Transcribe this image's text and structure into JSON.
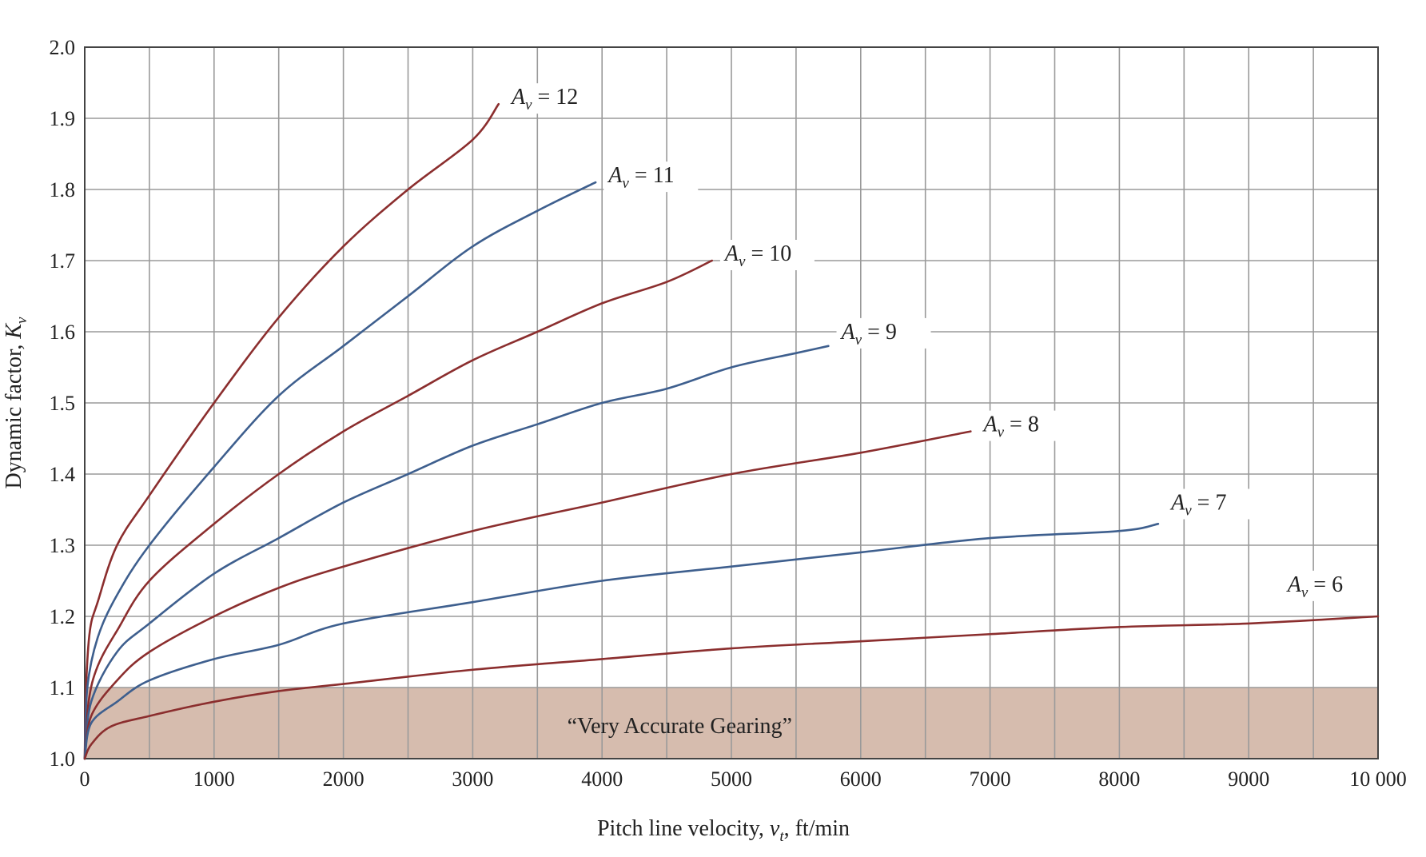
{
  "chart_data": {
    "type": "line",
    "xlabel": "Pitch line velocity, ",
    "xlabel_var": "v",
    "xlabel_sub": "t",
    "xlabel_unit": ", ft/min",
    "ylabel": "Dynamic factor, ",
    "ylabel_var": "K",
    "ylabel_sub": "v",
    "xlim": [
      0,
      10000
    ],
    "ylim": [
      1.0,
      2.0
    ],
    "x_ticks": [
      0,
      1000,
      2000,
      3000,
      4000,
      5000,
      6000,
      7000,
      8000,
      9000,
      10000
    ],
    "x_tick_labels": [
      "0",
      "1000",
      "2000",
      "3000",
      "4000",
      "5000",
      "6000",
      "7000",
      "8000",
      "9000",
      "10 000"
    ],
    "y_ticks": [
      1.0,
      1.1,
      1.2,
      1.3,
      1.4,
      1.5,
      1.6,
      1.7,
      1.8,
      1.9,
      2.0
    ],
    "y_tick_labels": [
      "1.0",
      "1.1",
      "1.2",
      "1.3",
      "1.4",
      "1.5",
      "1.6",
      "1.7",
      "1.8",
      "1.9",
      "2.0"
    ],
    "grid": true,
    "grid_step_x": 500,
    "grid_step_y": 0.1,
    "region": {
      "label": "“Very Accurate Gearing”",
      "y_range": [
        1.0,
        1.1
      ],
      "x_range": [
        0,
        10000
      ],
      "color": "#d6bcae"
    },
    "series": [
      {
        "name_var": "A",
        "name_sub": "v",
        "name_value": " = 12",
        "color": "#8b2e2e",
        "points": [
          [
            0,
            1.0
          ],
          [
            10,
            1.1
          ],
          [
            40,
            1.18
          ],
          [
            100,
            1.22
          ],
          [
            250,
            1.3
          ],
          [
            500,
            1.37
          ],
          [
            1000,
            1.5
          ],
          [
            1500,
            1.62
          ],
          [
            2000,
            1.72
          ],
          [
            2500,
            1.8
          ],
          [
            3000,
            1.87
          ],
          [
            3200,
            1.92
          ]
        ]
      },
      {
        "name_var": "A",
        "name_sub": "v",
        "name_value": " = 11",
        "color": "#3e5f8e",
        "points": [
          [
            0,
            1.0
          ],
          [
            20,
            1.1
          ],
          [
            100,
            1.17
          ],
          [
            250,
            1.23
          ],
          [
            500,
            1.3
          ],
          [
            1000,
            1.41
          ],
          [
            1500,
            1.51
          ],
          [
            2000,
            1.58
          ],
          [
            2500,
            1.65
          ],
          [
            3000,
            1.72
          ],
          [
            3500,
            1.77
          ],
          [
            3950,
            1.81
          ]
        ]
      },
      {
        "name_var": "A",
        "name_sub": "v",
        "name_value": " = 10",
        "color": "#8b2e2e",
        "points": [
          [
            0,
            1.0
          ],
          [
            30,
            1.08
          ],
          [
            100,
            1.13
          ],
          [
            250,
            1.18
          ],
          [
            500,
            1.25
          ],
          [
            1000,
            1.33
          ],
          [
            1500,
            1.4
          ],
          [
            2000,
            1.46
          ],
          [
            2500,
            1.51
          ],
          [
            3000,
            1.56
          ],
          [
            3500,
            1.6
          ],
          [
            4000,
            1.64
          ],
          [
            4500,
            1.67
          ],
          [
            4850,
            1.7
          ]
        ]
      },
      {
        "name_var": "A",
        "name_sub": "v",
        "name_value": " = 9",
        "color": "#3e5f8e",
        "points": [
          [
            0,
            1.0
          ],
          [
            50,
            1.08
          ],
          [
            250,
            1.15
          ],
          [
            500,
            1.19
          ],
          [
            1000,
            1.26
          ],
          [
            1500,
            1.31
          ],
          [
            2000,
            1.36
          ],
          [
            2500,
            1.4
          ],
          [
            3000,
            1.44
          ],
          [
            3500,
            1.47
          ],
          [
            4000,
            1.5
          ],
          [
            4500,
            1.52
          ],
          [
            5000,
            1.55
          ],
          [
            5500,
            1.57
          ],
          [
            5750,
            1.58
          ]
        ]
      },
      {
        "name_var": "A",
        "name_sub": "v",
        "name_value": " = 8",
        "color": "#8b2e2e",
        "points": [
          [
            0,
            1.0
          ],
          [
            50,
            1.06
          ],
          [
            250,
            1.11
          ],
          [
            500,
            1.15
          ],
          [
            1000,
            1.2
          ],
          [
            1500,
            1.24
          ],
          [
            2000,
            1.27
          ],
          [
            3000,
            1.32
          ],
          [
            4000,
            1.36
          ],
          [
            5000,
            1.4
          ],
          [
            6000,
            1.43
          ],
          [
            6850,
            1.46
          ]
        ]
      },
      {
        "name_var": "A",
        "name_sub": "v",
        "name_value": " = 7",
        "color": "#3e5f8e",
        "points": [
          [
            0,
            1.0
          ],
          [
            50,
            1.05
          ],
          [
            250,
            1.08
          ],
          [
            500,
            1.11
          ],
          [
            1000,
            1.14
          ],
          [
            1500,
            1.16
          ],
          [
            2000,
            1.19
          ],
          [
            3000,
            1.22
          ],
          [
            4000,
            1.25
          ],
          [
            5000,
            1.27
          ],
          [
            6000,
            1.29
          ],
          [
            7000,
            1.31
          ],
          [
            8000,
            1.32
          ],
          [
            8300,
            1.33
          ]
        ]
      },
      {
        "name_var": "A",
        "name_sub": "v",
        "name_value": " = 6",
        "color": "#8b2e2e",
        "points": [
          [
            0,
            1.0
          ],
          [
            50,
            1.02
          ],
          [
            200,
            1.045
          ],
          [
            500,
            1.06
          ],
          [
            1000,
            1.08
          ],
          [
            1500,
            1.095
          ],
          [
            2000,
            1.105
          ],
          [
            3000,
            1.125
          ],
          [
            4000,
            1.14
          ],
          [
            5000,
            1.155
          ],
          [
            6000,
            1.165
          ],
          [
            7000,
            1.175
          ],
          [
            8000,
            1.185
          ],
          [
            9000,
            1.19
          ],
          [
            10000,
            1.2
          ]
        ]
      }
    ],
    "series_labels_anchor": [
      {
        "x": 3300,
        "y": 1.92
      },
      {
        "x": 4050,
        "y": 1.81
      },
      {
        "x": 4950,
        "y": 1.7
      },
      {
        "x": 5850,
        "y": 1.59
      },
      {
        "x": 6950,
        "y": 1.46
      },
      {
        "x": 8400,
        "y": 1.35
      },
      {
        "x": 9300,
        "y": 1.235
      }
    ]
  }
}
